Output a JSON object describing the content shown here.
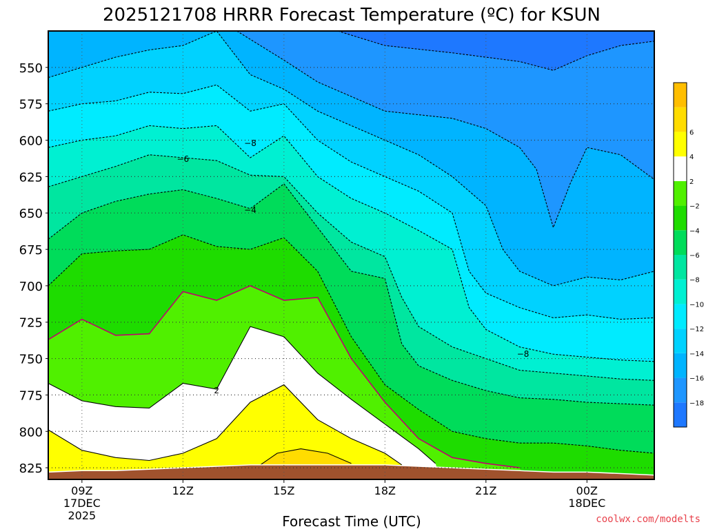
{
  "chart_data": {
    "type": "heatmap",
    "title": "2025121708 HRRR Forecast Temperature (ºC) for KSUN",
    "xlabel": "Forecast Time (UTC)",
    "ylabel": "",
    "x_tick_labels": [
      {
        "hour": 9,
        "lines": [
          "09Z",
          "17DEC",
          "2025"
        ]
      },
      {
        "hour": 12,
        "lines": [
          "12Z"
        ]
      },
      {
        "hour": 15,
        "lines": [
          "15Z"
        ]
      },
      {
        "hour": 18,
        "lines": [
          "18Z"
        ]
      },
      {
        "hour": 21,
        "lines": [
          "21Z"
        ]
      },
      {
        "hour": 24,
        "lines": [
          "00Z",
          "18DEC"
        ]
      }
    ],
    "xlim_hours": [
      8,
      26
    ],
    "y_ticks": [
      550,
      575,
      600,
      625,
      650,
      675,
      700,
      725,
      750,
      775,
      800,
      825
    ],
    "ylim": [
      525,
      833
    ],
    "grid": true,
    "legend": "right",
    "colorbar": {
      "levels": [
        -20,
        -18,
        -16,
        -14,
        -12,
        -10,
        -8,
        -6,
        -4,
        -2,
        2,
        4,
        6,
        8
      ],
      "labels": [
        "-18",
        "-16",
        "-14",
        "-12",
        "-10",
        "-8",
        "-6",
        "-4",
        "-2",
        "2",
        "4",
        "6"
      ],
      "colors": [
        "#1e78ff",
        "#1e96ff",
        "#00b4ff",
        "#00d2ff",
        "#00ebff",
        "#00f0d2",
        "#00e6a0",
        "#00dc5a",
        "#1edc00",
        "#50f000",
        "#ffffff",
        "#ffff00",
        "#ffdc00",
        "#ffbe00"
      ]
    },
    "terrain_color": "#a0522d",
    "hours": [
      8,
      9,
      10,
      11,
      12,
      13,
      14,
      15,
      16,
      17,
      18,
      19,
      20,
      21,
      22,
      23,
      24,
      25,
      26
    ],
    "surface_pressure": [
      828,
      827,
      827,
      826,
      825,
      824,
      823,
      823,
      823,
      823,
      823,
      824,
      825,
      826,
      827,
      828,
      828,
      829,
      830
    ],
    "contours": [
      {
        "value": -18,
        "color": "#000000",
        "dashed": true,
        "label": "",
        "points": [
          [
            16.6,
            525
          ],
          [
            18,
            535
          ],
          [
            20,
            540
          ],
          [
            22,
            546
          ],
          [
            23,
            552
          ],
          [
            24,
            542
          ],
          [
            25,
            535
          ],
          [
            26,
            532
          ]
        ]
      },
      {
        "value": -16,
        "color": "#000000",
        "dashed": true,
        "label": "",
        "points": [
          [
            13.6,
            525
          ],
          [
            15,
            545
          ],
          [
            16,
            560
          ],
          [
            17,
            570
          ],
          [
            18,
            580
          ],
          [
            20,
            585
          ],
          [
            21,
            592
          ],
          [
            22,
            605
          ],
          [
            22.5,
            620
          ],
          [
            23,
            660
          ],
          [
            23.5,
            630
          ],
          [
            24,
            605
          ],
          [
            25,
            610
          ],
          [
            26,
            627
          ]
        ]
      },
      {
        "value": -14,
        "color": "#000000",
        "dashed": true,
        "label": "",
        "points": [
          [
            8,
            557
          ],
          [
            9,
            550
          ],
          [
            10,
            543
          ],
          [
            11,
            538
          ],
          [
            12,
            535
          ],
          [
            13,
            525
          ],
          [
            14,
            555
          ],
          [
            15,
            565
          ],
          [
            16,
            580
          ],
          [
            17,
            590
          ],
          [
            18,
            600
          ],
          [
            19,
            610
          ],
          [
            20,
            625
          ],
          [
            21,
            645
          ],
          [
            21.5,
            675
          ],
          [
            22,
            690
          ],
          [
            23,
            700
          ],
          [
            24,
            694
          ],
          [
            25,
            696
          ],
          [
            26,
            690
          ]
        ]
      },
      {
        "value": -12,
        "color": "#000000",
        "dashed": true,
        "label": "",
        "points": [
          [
            8,
            580
          ],
          [
            9,
            575
          ],
          [
            10,
            573
          ],
          [
            11,
            567
          ],
          [
            12,
            568
          ],
          [
            13,
            562
          ],
          [
            14,
            580
          ],
          [
            15,
            575
          ],
          [
            16,
            600
          ],
          [
            17,
            615
          ],
          [
            18,
            625
          ],
          [
            19,
            635
          ],
          [
            20,
            650
          ],
          [
            20.5,
            690
          ],
          [
            21,
            705
          ],
          [
            22,
            715
          ],
          [
            23,
            722
          ],
          [
            24,
            720
          ],
          [
            25,
            723
          ],
          [
            26,
            722
          ]
        ]
      },
      {
        "value": -10,
        "color": "#000000",
        "dashed": true,
        "label": "",
        "points": [
          [
            8,
            605
          ],
          [
            9,
            600
          ],
          [
            10,
            597
          ],
          [
            11,
            590
          ],
          [
            12,
            592
          ],
          [
            13,
            590
          ],
          [
            14,
            612
          ],
          [
            15,
            597
          ],
          [
            16,
            625
          ],
          [
            17,
            640
          ],
          [
            18,
            650
          ],
          [
            19,
            662
          ],
          [
            20,
            675
          ],
          [
            20.5,
            715
          ],
          [
            21,
            730
          ],
          [
            22,
            742
          ],
          [
            23,
            747
          ],
          [
            24,
            749
          ],
          [
            25,
            751
          ],
          [
            26,
            752
          ]
        ]
      },
      {
        "value": -8,
        "color": "#000000",
        "dashed": true,
        "label": "-8",
        "points": [
          [
            8,
            632
          ],
          [
            9,
            625
          ],
          [
            10,
            618
          ],
          [
            11,
            610
          ],
          [
            12,
            612
          ],
          [
            13,
            614
          ],
          [
            14,
            624
          ],
          [
            15,
            625
          ],
          [
            16,
            650
          ],
          [
            17,
            670
          ],
          [
            18,
            680
          ],
          [
            18.5,
            708
          ],
          [
            19,
            728
          ],
          [
            20,
            742
          ],
          [
            21,
            750
          ],
          [
            22,
            758
          ],
          [
            23,
            760
          ],
          [
            24,
            762
          ],
          [
            25,
            764
          ],
          [
            26,
            765
          ]
        ]
      },
      {
        "value": -6,
        "color": "#000000",
        "dashed": true,
        "label": "-6",
        "points": [
          [
            8,
            668
          ],
          [
            9,
            650
          ],
          [
            10,
            642
          ],
          [
            11,
            637
          ],
          [
            12,
            634
          ],
          [
            13,
            640
          ],
          [
            14,
            647
          ],
          [
            15,
            630
          ],
          [
            16,
            660
          ],
          [
            17,
            690
          ],
          [
            18,
            695
          ],
          [
            18.5,
            740
          ],
          [
            19,
            755
          ],
          [
            20,
            765
          ],
          [
            21,
            772
          ],
          [
            22,
            777
          ],
          [
            23,
            778
          ],
          [
            24,
            780
          ],
          [
            25,
            781
          ],
          [
            26,
            782
          ]
        ]
      },
      {
        "value": -4,
        "color": "#000000",
        "dashed": true,
        "label": "-4",
        "points": [
          [
            8,
            700
          ],
          [
            9,
            678
          ],
          [
            10,
            676
          ],
          [
            11,
            675
          ],
          [
            12,
            665
          ],
          [
            13,
            673
          ],
          [
            14,
            675
          ],
          [
            15,
            667
          ],
          [
            16,
            690
          ],
          [
            17,
            735
          ],
          [
            18,
            768
          ],
          [
            19,
            785
          ],
          [
            20,
            800
          ],
          [
            21,
            805
          ],
          [
            22,
            808
          ],
          [
            23,
            808
          ],
          [
            24,
            810
          ],
          [
            25,
            813
          ],
          [
            26,
            815
          ]
        ]
      },
      {
        "value": 0,
        "color": "#c0006e",
        "dashed": false,
        "label": "",
        "points": [
          [
            8,
            737
          ],
          [
            9,
            723
          ],
          [
            10,
            734
          ],
          [
            11,
            733
          ],
          [
            12,
            704
          ],
          [
            13,
            710
          ],
          [
            14,
            700
          ],
          [
            15,
            710
          ],
          [
            16,
            708
          ],
          [
            17,
            750
          ],
          [
            18,
            780
          ],
          [
            19,
            805
          ],
          [
            20,
            818
          ],
          [
            21,
            822
          ],
          [
            22,
            825
          ]
        ]
      },
      {
        "value": 2,
        "color": "#000000",
        "dashed": false,
        "label": "2",
        "points": [
          [
            8,
            767
          ],
          [
            9,
            779
          ],
          [
            10,
            783
          ],
          [
            11,
            784
          ],
          [
            12,
            767
          ],
          [
            13,
            771
          ],
          [
            14,
            728
          ],
          [
            15,
            735
          ],
          [
            16,
            760
          ],
          [
            17,
            778
          ],
          [
            18,
            795
          ],
          [
            19,
            812
          ],
          [
            19.5,
            822
          ]
        ]
      },
      {
        "value": 4,
        "color": "#000000",
        "dashed": false,
        "label": "",
        "points": [
          [
            8,
            799
          ],
          [
            9,
            813
          ],
          [
            10,
            818
          ],
          [
            11,
            820
          ],
          [
            12,
            815
          ],
          [
            13,
            805
          ],
          [
            14,
            780
          ],
          [
            15,
            768
          ],
          [
            16,
            792
          ],
          [
            17,
            805
          ],
          [
            18,
            815
          ],
          [
            18.5,
            823
          ]
        ]
      },
      {
        "value": 6,
        "color": "#000000",
        "dashed": false,
        "label": "",
        "points": [
          [
            14.3,
            823
          ],
          [
            14.8,
            815
          ],
          [
            15.5,
            812
          ],
          [
            16.3,
            815
          ],
          [
            17,
            822
          ]
        ]
      }
    ],
    "contour_labels": [
      {
        "text": "-8",
        "hour": 14,
        "pressure": 602
      },
      {
        "text": "-6",
        "hour": 12,
        "pressure": 613
      },
      {
        "text": "-4",
        "hour": 14,
        "pressure": 648
      },
      {
        "text": "2",
        "hour": 13,
        "pressure": 772
      },
      {
        "text": "-8",
        "hour": 22.1,
        "pressure": 747
      }
    ]
  },
  "credit": "coolwx.com/modelts"
}
